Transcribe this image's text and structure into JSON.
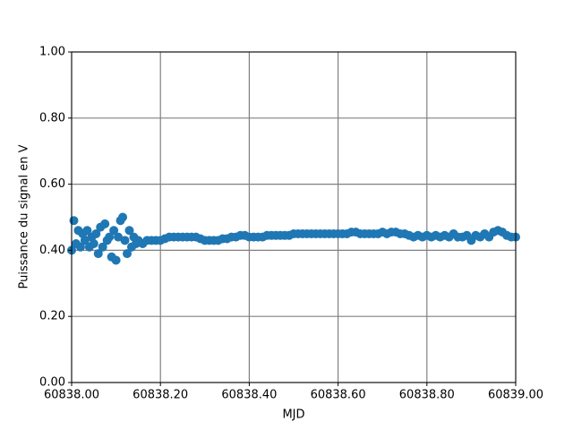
{
  "chart_data": {
    "type": "scatter",
    "xlabel": "MJD",
    "ylabel": "Puissance du signal en V",
    "color": "#1f77b4",
    "grid": true,
    "xlim": [
      60838.0,
      60839.0
    ],
    "xticks": [
      {
        "value": 60838.0,
        "label": "60838.00"
      },
      {
        "value": 60838.2,
        "label": "60838.20"
      },
      {
        "value": 60838.4,
        "label": "60838.40"
      },
      {
        "value": 60838.6,
        "label": "60838.60"
      },
      {
        "value": 60838.8,
        "label": "60838.80"
      },
      {
        "value": 60839.0,
        "label": "60839.00"
      }
    ],
    "ylim": [
      0,
      1
    ],
    "yticks": [
      {
        "value": 0,
        "label": "0.00"
      },
      {
        "value": 0.2,
        "label": "0.20"
      },
      {
        "value": 0.4,
        "label": "0.40"
      },
      {
        "value": 0.6,
        "label": "0.60"
      },
      {
        "value": 0.8,
        "label": "0.80"
      },
      {
        "value": 1,
        "label": "1.00"
      }
    ],
    "x": [
      60838.0,
      60838.005,
      60838.01,
      60838.015,
      60838.02,
      60838.025,
      60838.03,
      60838.035,
      60838.04,
      60838.045,
      60838.05,
      60838.055,
      60838.06,
      60838.065,
      60838.07,
      60838.075,
      60838.08,
      60838.085,
      60838.09,
      60838.095,
      60838.1,
      60838.105,
      60838.11,
      60838.115,
      60838.12,
      60838.125,
      60838.13,
      60838.135,
      60838.14,
      60838.145,
      60838.15,
      60838.16,
      60838.17,
      60838.18,
      60838.19,
      60838.2,
      60838.21,
      60838.22,
      60838.23,
      60838.24,
      60838.25,
      60838.26,
      60838.27,
      60838.28,
      60838.29,
      60838.3,
      60838.31,
      60838.32,
      60838.33,
      60838.34,
      60838.35,
      60838.36,
      60838.37,
      60838.38,
      60838.39,
      60838.4,
      60838.41,
      60838.42,
      60838.43,
      60838.44,
      60838.45,
      60838.46,
      60838.47,
      60838.48,
      60838.49,
      60838.5,
      60838.51,
      60838.52,
      60838.53,
      60838.54,
      60838.55,
      60838.56,
      60838.57,
      60838.58,
      60838.59,
      60838.6,
      60838.61,
      60838.62,
      60838.63,
      60838.64,
      60838.65,
      60838.66,
      60838.67,
      60838.68,
      60838.69,
      60838.7,
      60838.71,
      60838.72,
      60838.73,
      60838.74,
      60838.75,
      60838.76,
      60838.77,
      60838.78,
      60838.79,
      60838.8,
      60838.81,
      60838.82,
      60838.83,
      60838.84,
      60838.85,
      60838.86,
      60838.87,
      60838.88,
      60838.89,
      60838.9,
      60838.91,
      60838.92,
      60838.93,
      60838.94,
      60838.95,
      60838.96,
      60838.97,
      60838.98,
      60838.99,
      60839.0
    ],
    "values": [
      0.4,
      0.49,
      0.42,
      0.46,
      0.41,
      0.45,
      0.43,
      0.46,
      0.41,
      0.44,
      0.42,
      0.45,
      0.39,
      0.47,
      0.41,
      0.48,
      0.43,
      0.44,
      0.38,
      0.46,
      0.37,
      0.44,
      0.49,
      0.5,
      0.43,
      0.39,
      0.46,
      0.41,
      0.44,
      0.42,
      0.43,
      0.42,
      0.43,
      0.43,
      0.43,
      0.43,
      0.435,
      0.44,
      0.44,
      0.44,
      0.44,
      0.44,
      0.44,
      0.44,
      0.435,
      0.43,
      0.43,
      0.43,
      0.43,
      0.435,
      0.435,
      0.44,
      0.44,
      0.445,
      0.445,
      0.44,
      0.44,
      0.44,
      0.44,
      0.445,
      0.445,
      0.445,
      0.445,
      0.445,
      0.445,
      0.45,
      0.45,
      0.45,
      0.45,
      0.45,
      0.45,
      0.45,
      0.45,
      0.45,
      0.45,
      0.45,
      0.45,
      0.45,
      0.455,
      0.455,
      0.45,
      0.45,
      0.45,
      0.45,
      0.45,
      0.455,
      0.45,
      0.455,
      0.455,
      0.45,
      0.45,
      0.445,
      0.44,
      0.445,
      0.44,
      0.445,
      0.44,
      0.445,
      0.44,
      0.445,
      0.44,
      0.45,
      0.44,
      0.44,
      0.445,
      0.43,
      0.445,
      0.44,
      0.45,
      0.44,
      0.455,
      0.46,
      0.455,
      0.445,
      0.44,
      0.44
    ]
  }
}
